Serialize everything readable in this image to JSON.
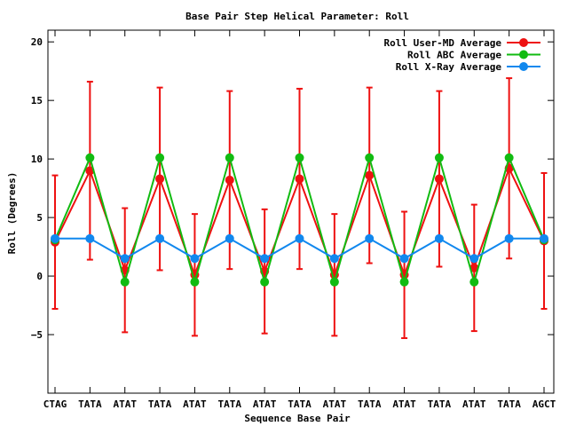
{
  "chart_data": {
    "type": "line",
    "title": "Base Pair Step Helical Parameter: Roll",
    "xlabel": "Sequence Base Pair",
    "ylabel": "Roll (Degrees)",
    "categories": [
      "CTAG",
      "TATA",
      "ATAT",
      "TATA",
      "ATAT",
      "TATA",
      "ATAT",
      "TATA",
      "ATAT",
      "TATA",
      "ATAT",
      "TATA",
      "ATAT",
      "TATA",
      "AGCT"
    ],
    "ylim": [
      -10,
      21
    ],
    "yticks": [
      -5,
      0,
      5,
      10,
      15,
      20
    ],
    "grid": false,
    "legend_position": "top-right",
    "series": [
      {
        "name": "Roll User-MD Average",
        "color": "#ee1111",
        "values": [
          2.9,
          9.0,
          0.5,
          8.3,
          0.1,
          8.2,
          0.4,
          8.3,
          0.1,
          8.6,
          0.1,
          8.3,
          0.7,
          9.2,
          3.0
        ],
        "error": [
          5.7,
          7.6,
          5.3,
          7.8,
          5.2,
          7.6,
          5.3,
          7.7,
          5.2,
          7.5,
          5.4,
          7.5,
          5.4,
          7.7,
          5.8
        ]
      },
      {
        "name": "Roll ABC Average",
        "color": "#11bb11",
        "values": [
          3.1,
          10.1,
          -0.5,
          10.1,
          -0.5,
          10.1,
          -0.5,
          10.1,
          -0.5,
          10.1,
          -0.5,
          10.1,
          -0.5,
          10.1,
          3.1
        ]
      },
      {
        "name": "Roll X-Ray Average",
        "color": "#1188ee",
        "values": [
          3.2,
          3.2,
          1.5,
          3.2,
          1.5,
          3.2,
          1.5,
          3.2,
          1.5,
          3.2,
          1.5,
          3.2,
          1.5,
          3.2,
          3.2
        ]
      }
    ]
  }
}
